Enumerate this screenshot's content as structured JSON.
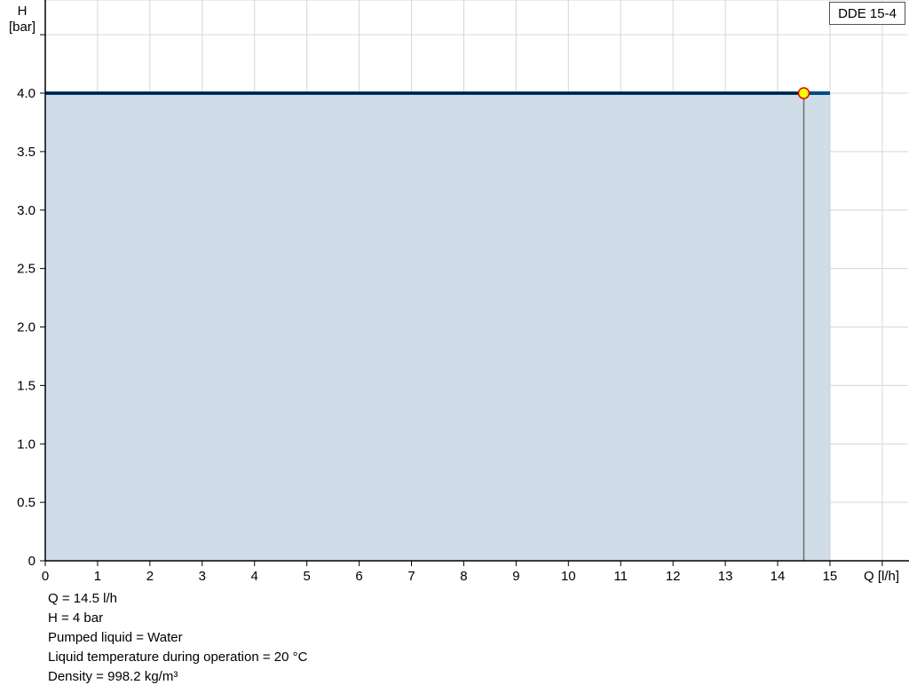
{
  "chart_data": {
    "type": "area",
    "title": "",
    "xlabel": "Q [l/h]",
    "ylabel_line1": "H",
    "ylabel_line2": "[bar]",
    "xlim": [
      0,
      16.5
    ],
    "ylim": [
      0,
      4.8
    ],
    "x_ticks": [
      0,
      1,
      2,
      3,
      4,
      5,
      6,
      7,
      8,
      9,
      10,
      11,
      12,
      13,
      14,
      15,
      16
    ],
    "x_tick_labels": [
      "0",
      "1",
      "2",
      "3",
      "4",
      "5",
      "6",
      "7",
      "8",
      "9",
      "10",
      "11",
      "12",
      "13",
      "14",
      "15",
      ""
    ],
    "y_ticks": [
      0,
      0.5,
      1,
      1.5,
      2,
      2.5,
      3,
      3.5,
      4,
      4.5
    ],
    "y_tick_labels": [
      "0",
      "0.5",
      "1.0",
      "1.5",
      "2.0",
      "2.5",
      "3.0",
      "3.5",
      "4.0",
      ""
    ],
    "grid": true,
    "legend_position": "top-right",
    "series": [
      {
        "name": "DDE 15-4",
        "x": [
          0,
          15
        ],
        "y": [
          4.0,
          4.0
        ],
        "color": "#004b87",
        "fill": "#d0dce7"
      }
    ],
    "operating_point": {
      "x": 14.5,
      "y": 4.0,
      "fill": "#ffff00",
      "stroke": "#e00000"
    }
  },
  "info": {
    "lines": [
      "Q = 14.5 l/h",
      "H = 4 bar",
      "Pumped liquid = Water",
      "Liquid temperature during operation = 20 °C",
      "Density = 998.2 kg/m³"
    ]
  }
}
